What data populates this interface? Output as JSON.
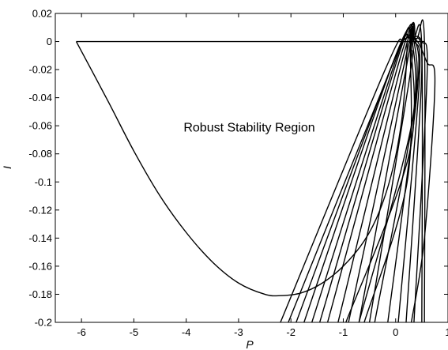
{
  "chart_data": {
    "type": "line",
    "title": "",
    "xlabel": "P",
    "ylabel": "I",
    "xlim": [
      -6.5,
      1
    ],
    "ylim": [
      -0.2,
      0.02
    ],
    "xticks": [
      -6,
      -5,
      -4,
      -3,
      -2,
      -1,
      0,
      1
    ],
    "xtick_labels": [
      "-6",
      "-5",
      "-4",
      "-3",
      "-2",
      "-1",
      "0",
      "1"
    ],
    "yticks": [
      0.02,
      0,
      -0.02,
      -0.04,
      -0.06,
      -0.08,
      -0.1,
      -0.12,
      -0.14,
      -0.16,
      -0.18,
      -0.2
    ],
    "ytick_labels": [
      "0.02",
      "0",
      "-0.02",
      "-0.04",
      "-0.06",
      "-0.08",
      "-0.1",
      "-0.12",
      "-0.14",
      "-0.16",
      "-0.18",
      "-0.2"
    ],
    "grid": false,
    "annotations": [
      {
        "text": "Robust Stability Region",
        "x": -4.05,
        "y": -0.064
      }
    ],
    "series": [
      {
        "points": [
          [
            -6.1,
            0
          ],
          [
            -5.5,
            -0.042
          ],
          [
            -5.0,
            -0.078
          ],
          [
            -4.5,
            -0.11
          ],
          [
            -4.0,
            -0.136
          ],
          [
            -3.5,
            -0.157
          ],
          [
            -3.0,
            -0.172
          ],
          [
            -2.5,
            -0.18
          ],
          [
            -2.2,
            -0.181
          ],
          [
            -1.8,
            -0.179
          ],
          [
            -1.4,
            -0.172
          ],
          [
            -1.0,
            -0.16
          ],
          [
            -0.6,
            -0.142
          ],
          [
            -0.3,
            -0.12
          ],
          [
            -0.05,
            -0.09
          ],
          [
            0.12,
            -0.055
          ],
          [
            0.2,
            -0.02
          ],
          [
            0.22,
            0
          ]
        ]
      },
      {
        "points": [
          [
            -6.1,
            0
          ],
          [
            0.55,
            0
          ]
        ]
      },
      {
        "points": [
          [
            -2.2,
            -0.2
          ],
          [
            -0.2,
            -0.02
          ],
          [
            0.15,
            0.001
          ],
          [
            0.4,
            0.002
          ],
          [
            0.55,
            0
          ],
          [
            0.55,
            -0.2
          ]
        ]
      },
      {
        "points": [
          [
            -2.05,
            -0.2
          ],
          [
            -0.1,
            -0.02
          ],
          [
            0.2,
            0.002
          ],
          [
            0.35,
            0.003
          ],
          [
            0.5,
            -0.005
          ],
          [
            0.5,
            -0.2
          ]
        ]
      },
      {
        "points": [
          [
            -1.9,
            -0.2
          ],
          [
            -0.05,
            -0.015
          ],
          [
            0.3,
            0.002
          ],
          [
            0.5,
            0.0
          ],
          [
            0.6,
            -0.025
          ],
          [
            0.35,
            -0.2
          ]
        ]
      },
      {
        "points": [
          [
            -1.75,
            -0.2
          ],
          [
            0.0,
            -0.01
          ],
          [
            0.35,
            0.002
          ],
          [
            0.6,
            -0.015
          ],
          [
            0.75,
            -0.03
          ],
          [
            0.55,
            -0.14
          ],
          [
            0.3,
            -0.2
          ]
        ]
      },
      {
        "points": [
          [
            -1.6,
            -0.2
          ],
          [
            0.05,
            -0.008
          ],
          [
            0.3,
            0.001
          ],
          [
            0.5,
            -0.02
          ],
          [
            0.2,
            -0.2
          ]
        ]
      },
      {
        "points": [
          [
            -1.45,
            -0.2
          ],
          [
            0.1,
            -0.005
          ],
          [
            0.35,
            0.0
          ],
          [
            0.45,
            -0.03
          ],
          [
            0.05,
            -0.2
          ]
        ]
      },
      {
        "points": [
          [
            -1.3,
            -0.2
          ],
          [
            0.15,
            -0.004
          ],
          [
            0.38,
            0.0
          ],
          [
            0.4,
            -0.04
          ],
          [
            -0.15,
            -0.2
          ]
        ]
      },
      {
        "points": [
          [
            -1.1,
            -0.2
          ],
          [
            0.18,
            -0.006
          ],
          [
            0.35,
            0.0
          ],
          [
            0.35,
            -0.05
          ],
          [
            -0.4,
            -0.2
          ]
        ]
      },
      {
        "points": [
          [
            -0.9,
            -0.2
          ],
          [
            0.2,
            -0.01
          ],
          [
            0.32,
            0.0
          ],
          [
            0.3,
            -0.06
          ],
          [
            -0.7,
            -0.2
          ]
        ]
      },
      {
        "points": [
          [
            -0.7,
            -0.2
          ],
          [
            0.22,
            -0.015
          ],
          [
            0.28,
            0.0
          ],
          [
            0.26,
            -0.08
          ],
          [
            -0.95,
            -0.2
          ]
        ]
      },
      {
        "points": [
          [
            -0.5,
            -0.2
          ],
          [
            0.25,
            -0.03
          ],
          [
            0.3,
            -0.005
          ],
          [
            0.28,
            0.0
          ],
          [
            0.22,
            -0.1
          ],
          [
            -0.6,
            -0.2
          ]
        ]
      }
    ]
  }
}
